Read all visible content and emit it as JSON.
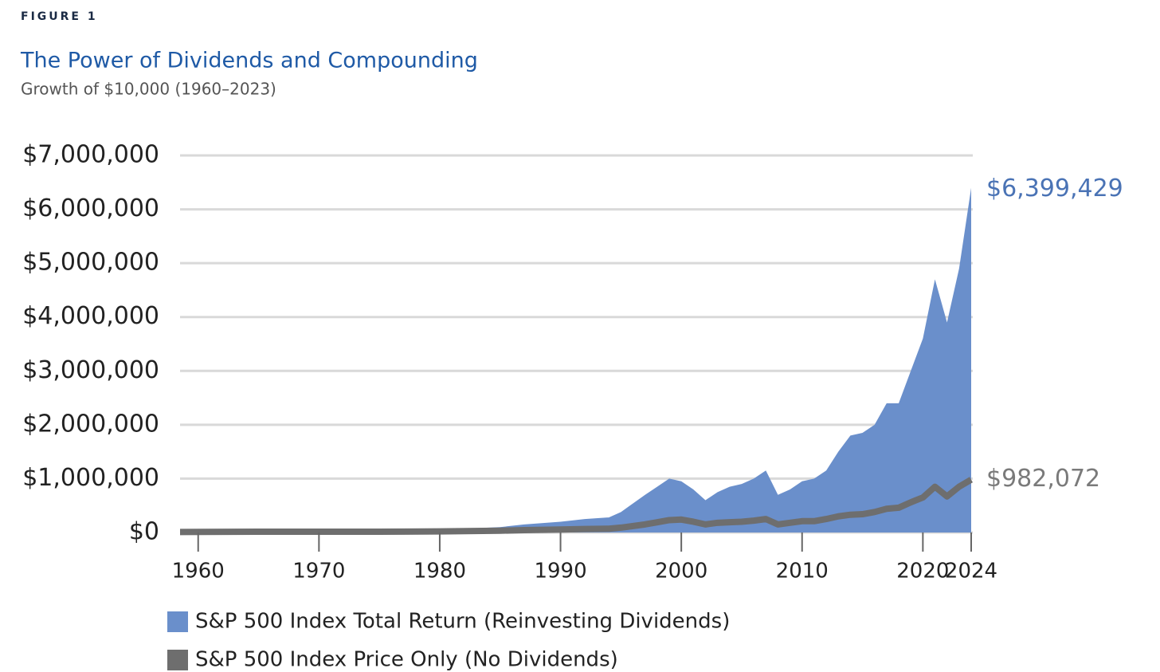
{
  "chart_data": {
    "type": "area",
    "kicker": "FIGURE 1",
    "title": "The Power of Dividends and Compounding",
    "subtitle": "Growth of $10,000 (1960–2023)",
    "x": [
      1958.5,
      1965,
      1970,
      1975,
      1980,
      1985,
      1987,
      1990,
      1992,
      1994,
      1995,
      1997,
      1998,
      1999,
      2000,
      2001,
      2002,
      2003,
      2004,
      2005,
      2006,
      2007,
      2008,
      2009,
      2010,
      2011,
      2012,
      2013,
      2014,
      2015,
      2016,
      2017,
      2018,
      2019,
      2020,
      2021,
      2022,
      2023,
      2024
    ],
    "series": [
      {
        "name": "S&P 500 Index Total Return (Reinvesting Dividends)",
        "color": "#6a8fcb",
        "style": "area",
        "values": [
          10000,
          20000,
          25000,
          30000,
          50000,
          100000,
          150000,
          200000,
          250000,
          280000,
          380000,
          700000,
          850000,
          1000000,
          950000,
          800000,
          600000,
          750000,
          850000,
          900000,
          1000000,
          1150000,
          700000,
          800000,
          950000,
          1000000,
          1150000,
          1500000,
          1800000,
          1850000,
          2000000,
          2400000,
          2400000,
          3000000,
          3600000,
          4700000,
          3900000,
          4900000,
          6399429
        ],
        "value_labels": [
          null,
          null,
          null,
          null,
          null,
          null,
          null,
          null,
          null,
          null,
          null,
          null,
          null,
          null,
          null,
          null,
          null,
          null,
          null,
          null,
          null,
          null,
          null,
          null,
          null,
          null,
          null,
          null,
          null,
          null,
          null,
          null,
          null,
          null,
          null,
          null,
          null,
          null,
          "$6,399,429"
        ],
        "label_color": "#4a73b5"
      },
      {
        "name": "S&P 500 Index Price Only (No Dividends)",
        "color": "#6e6e6e",
        "style": "line",
        "values": [
          10000,
          15000,
          14000,
          15000,
          20000,
          33000,
          45000,
          55000,
          65000,
          70000,
          90000,
          150000,
          190000,
          230000,
          240000,
          200000,
          150000,
          180000,
          190000,
          200000,
          220000,
          250000,
          150000,
          180000,
          210000,
          210000,
          250000,
          300000,
          330000,
          340000,
          380000,
          440000,
          460000,
          560000,
          650000,
          850000,
          670000,
          850000,
          982072
        ],
        "value_labels": [
          null,
          null,
          null,
          null,
          null,
          null,
          null,
          null,
          null,
          null,
          null,
          null,
          null,
          null,
          null,
          null,
          null,
          null,
          null,
          null,
          null,
          null,
          null,
          null,
          null,
          null,
          null,
          null,
          null,
          null,
          null,
          null,
          null,
          null,
          null,
          null,
          null,
          null,
          "$982,072"
        ],
        "label_color": "#7a7a7a"
      }
    ],
    "xlim": [
      1958.5,
      2024
    ],
    "xticks": [
      1960,
      1970,
      1980,
      1990,
      2000,
      2010,
      2020,
      2024
    ],
    "ylim": [
      0,
      7000000
    ],
    "yticks": [
      {
        "value": 0,
        "label": "$0"
      },
      {
        "value": 1000000,
        "label": "$1,000,000"
      },
      {
        "value": 2000000,
        "label": "$2,000,000"
      },
      {
        "value": 3000000,
        "label": "$3,000,000"
      },
      {
        "value": 4000000,
        "label": "$4,000,000"
      },
      {
        "value": 5000000,
        "label": "$5,000,000"
      },
      {
        "value": 6000000,
        "label": "$6,000,000"
      },
      {
        "value": 7000000,
        "label": "$7,000,000"
      }
    ],
    "grid": true,
    "legend": "bottom"
  }
}
